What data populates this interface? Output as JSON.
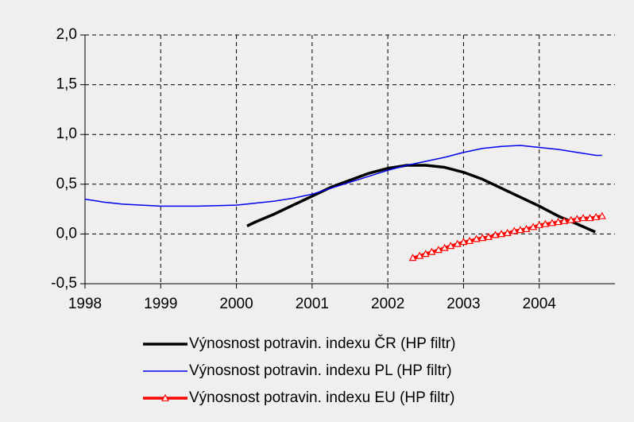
{
  "chart_data": {
    "type": "line",
    "xlim": [
      1998,
      2005
    ],
    "xticks": [
      1998,
      1999,
      2000,
      2001,
      2002,
      2003,
      2004
    ],
    "ylim": [
      -0.5,
      2.0
    ],
    "yticks": [
      {
        "value": -0.5,
        "label": "-0,5"
      },
      {
        "value": 0,
        "label": "0,0"
      },
      {
        "value": 0.5,
        "label": "0,5"
      },
      {
        "value": 1.0,
        "label": "1,0"
      },
      {
        "value": 1.5,
        "label": "1,5"
      },
      {
        "value": 2.0,
        "label": "2,0"
      }
    ],
    "grid": true,
    "legend": "bottom",
    "series": [
      {
        "name": "Výnosnost potravin. indexu ČR (HP filtr)",
        "color": "#000000",
        "marker": "none",
        "x": [
          2000.14,
          2000.25,
          2000.5,
          2000.75,
          2001.0,
          2001.25,
          2001.5,
          2001.75,
          2002.0,
          2002.25,
          2002.5,
          2002.75,
          2003.0,
          2003.25,
          2003.5,
          2003.75,
          2004.0,
          2004.25,
          2004.5,
          2004.74
        ],
        "values": [
          0.08,
          0.12,
          0.2,
          0.29,
          0.38,
          0.47,
          0.54,
          0.61,
          0.66,
          0.69,
          0.69,
          0.67,
          0.62,
          0.55,
          0.46,
          0.37,
          0.28,
          0.18,
          0.1,
          0.02
        ]
      },
      {
        "name": "Výnosnost potravin. indexu PL (HP filtr)",
        "color": "#0000ee",
        "marker": "none",
        "x": [
          1998.0,
          1998.25,
          1998.5,
          1998.75,
          1999.0,
          1999.5,
          2000.0,
          2000.25,
          2000.5,
          2000.75,
          2001.0,
          2001.25,
          2001.5,
          2001.75,
          2002.0,
          2002.25,
          2002.5,
          2002.75,
          2003.0,
          2003.25,
          2003.5,
          2003.75,
          2004.0,
          2004.25,
          2004.5,
          2004.75,
          2004.83
        ],
        "values": [
          0.35,
          0.32,
          0.3,
          0.29,
          0.28,
          0.28,
          0.29,
          0.31,
          0.33,
          0.36,
          0.4,
          0.46,
          0.52,
          0.58,
          0.64,
          0.69,
          0.73,
          0.77,
          0.82,
          0.86,
          0.88,
          0.89,
          0.87,
          0.85,
          0.82,
          0.79,
          0.79
        ]
      },
      {
        "name": "Výnosnost potravin. indexu EU (HP filtr)",
        "color": "#ff0000",
        "marker": "triangle",
        "x": [
          2002.33,
          2002.42,
          2002.5,
          2002.58,
          2002.67,
          2002.75,
          2002.83,
          2002.92,
          2003.0,
          2003.08,
          2003.17,
          2003.25,
          2003.33,
          2003.42,
          2003.5,
          2003.58,
          2003.67,
          2003.75,
          2003.83,
          2003.92,
          2004.0,
          2004.08,
          2004.17,
          2004.25,
          2004.33,
          2004.42,
          2004.5,
          2004.58,
          2004.67,
          2004.75,
          2004.83
        ],
        "values": [
          -0.24,
          -0.22,
          -0.2,
          -0.18,
          -0.16,
          -0.14,
          -0.12,
          -0.1,
          -0.08,
          -0.07,
          -0.05,
          -0.04,
          -0.03,
          -0.01,
          0.0,
          0.01,
          0.03,
          0.04,
          0.05,
          0.07,
          0.09,
          0.1,
          0.11,
          0.12,
          0.13,
          0.14,
          0.15,
          0.16,
          0.16,
          0.17,
          0.18
        ]
      }
    ]
  }
}
